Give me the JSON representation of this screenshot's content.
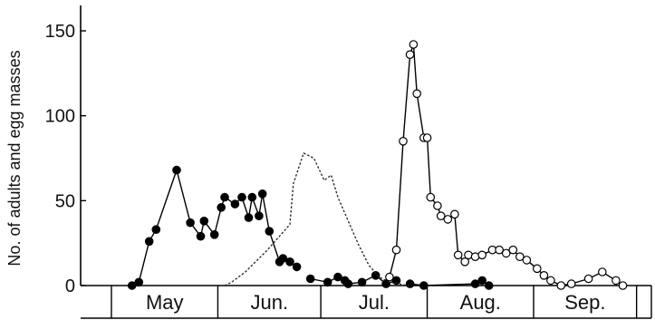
{
  "chart_data": {
    "type": "line",
    "title": "",
    "xlabel": "",
    "ylabel": "No. of adults and egg masses",
    "ylim": [
      0,
      160
    ],
    "yticks": [
      0,
      50,
      100,
      150
    ],
    "xlim": [
      0,
      158
    ],
    "months": [
      {
        "label": "May",
        "start": 0,
        "end": 31
      },
      {
        "label": "Jun.",
        "start": 31,
        "end": 61
      },
      {
        "label": "Jul.",
        "start": 61,
        "end": 92
      },
      {
        "label": "Aug.",
        "start": 92,
        "end": 123
      },
      {
        "label": "Sep.",
        "start": 123,
        "end": 153
      }
    ],
    "series": [
      {
        "marker": "filled-circle",
        "line": "solid",
        "color": "#000000",
        "segments": [
          {
            "x": [
              6,
              8,
              11,
              13,
              19,
              23,
              26,
              27,
              30,
              32,
              33,
              36,
              38,
              40,
              41,
              43,
              44,
              46,
              49,
              50,
              52,
              54
            ],
            "y": [
              0,
              2,
              26,
              33,
              68,
              37,
              29,
              38,
              30,
              46,
              52,
              48,
              52,
              40,
              52,
              41,
              54,
              32,
              14,
              16,
              14,
              11
            ]
          },
          {
            "x": [
              58,
              63,
              66,
              68,
              69,
              73,
              77,
              80,
              83
            ],
            "y": [
              4,
              2,
              5,
              3,
              1,
              2,
              6,
              1,
              3
            ]
          },
          {
            "x": [
              87,
              91,
              106,
              108,
              110
            ],
            "y": [
              1,
              0,
              1,
              3,
              0
            ]
          }
        ]
      },
      {
        "marker": "open-circle",
        "line": "solid",
        "color": "#000000",
        "segments": [
          {
            "x": [
              81,
              83,
              85,
              87,
              88,
              89,
              91,
              92,
              93,
              95,
              96,
              98,
              100,
              101,
              103,
              104,
              106,
              108,
              111,
              113,
              115,
              117,
              119,
              121,
              124,
              126,
              128,
              131,
              134,
              139,
              143,
              147,
              149
            ],
            "y": [
              5,
              21,
              85,
              136,
              142,
              113,
              87,
              87,
              52,
              47,
              41,
              39,
              42,
              18,
              14,
              18,
              17,
              18,
              21,
              21,
              19,
              21,
              17,
              15,
              10,
              6,
              3,
              0,
              1,
              4,
              8,
              3,
              0
            ]
          }
        ]
      },
      {
        "marker": "none",
        "line": "dotted",
        "color": "#222222",
        "segments": [
          {
            "x": [
              33,
              35,
              39,
              45,
              52,
              53,
              56,
              59,
              62,
              64,
              66,
              69,
              72,
              75,
              78,
              81,
              84,
              86,
              87
            ],
            "y": [
              0,
              2,
              8,
              20,
              36,
              60,
              78,
              75,
              62,
              65,
              52,
              38,
              24,
              12,
              5,
              2,
              1,
              0,
              0
            ]
          }
        ]
      }
    ],
    "legend": "none",
    "grid": false
  }
}
